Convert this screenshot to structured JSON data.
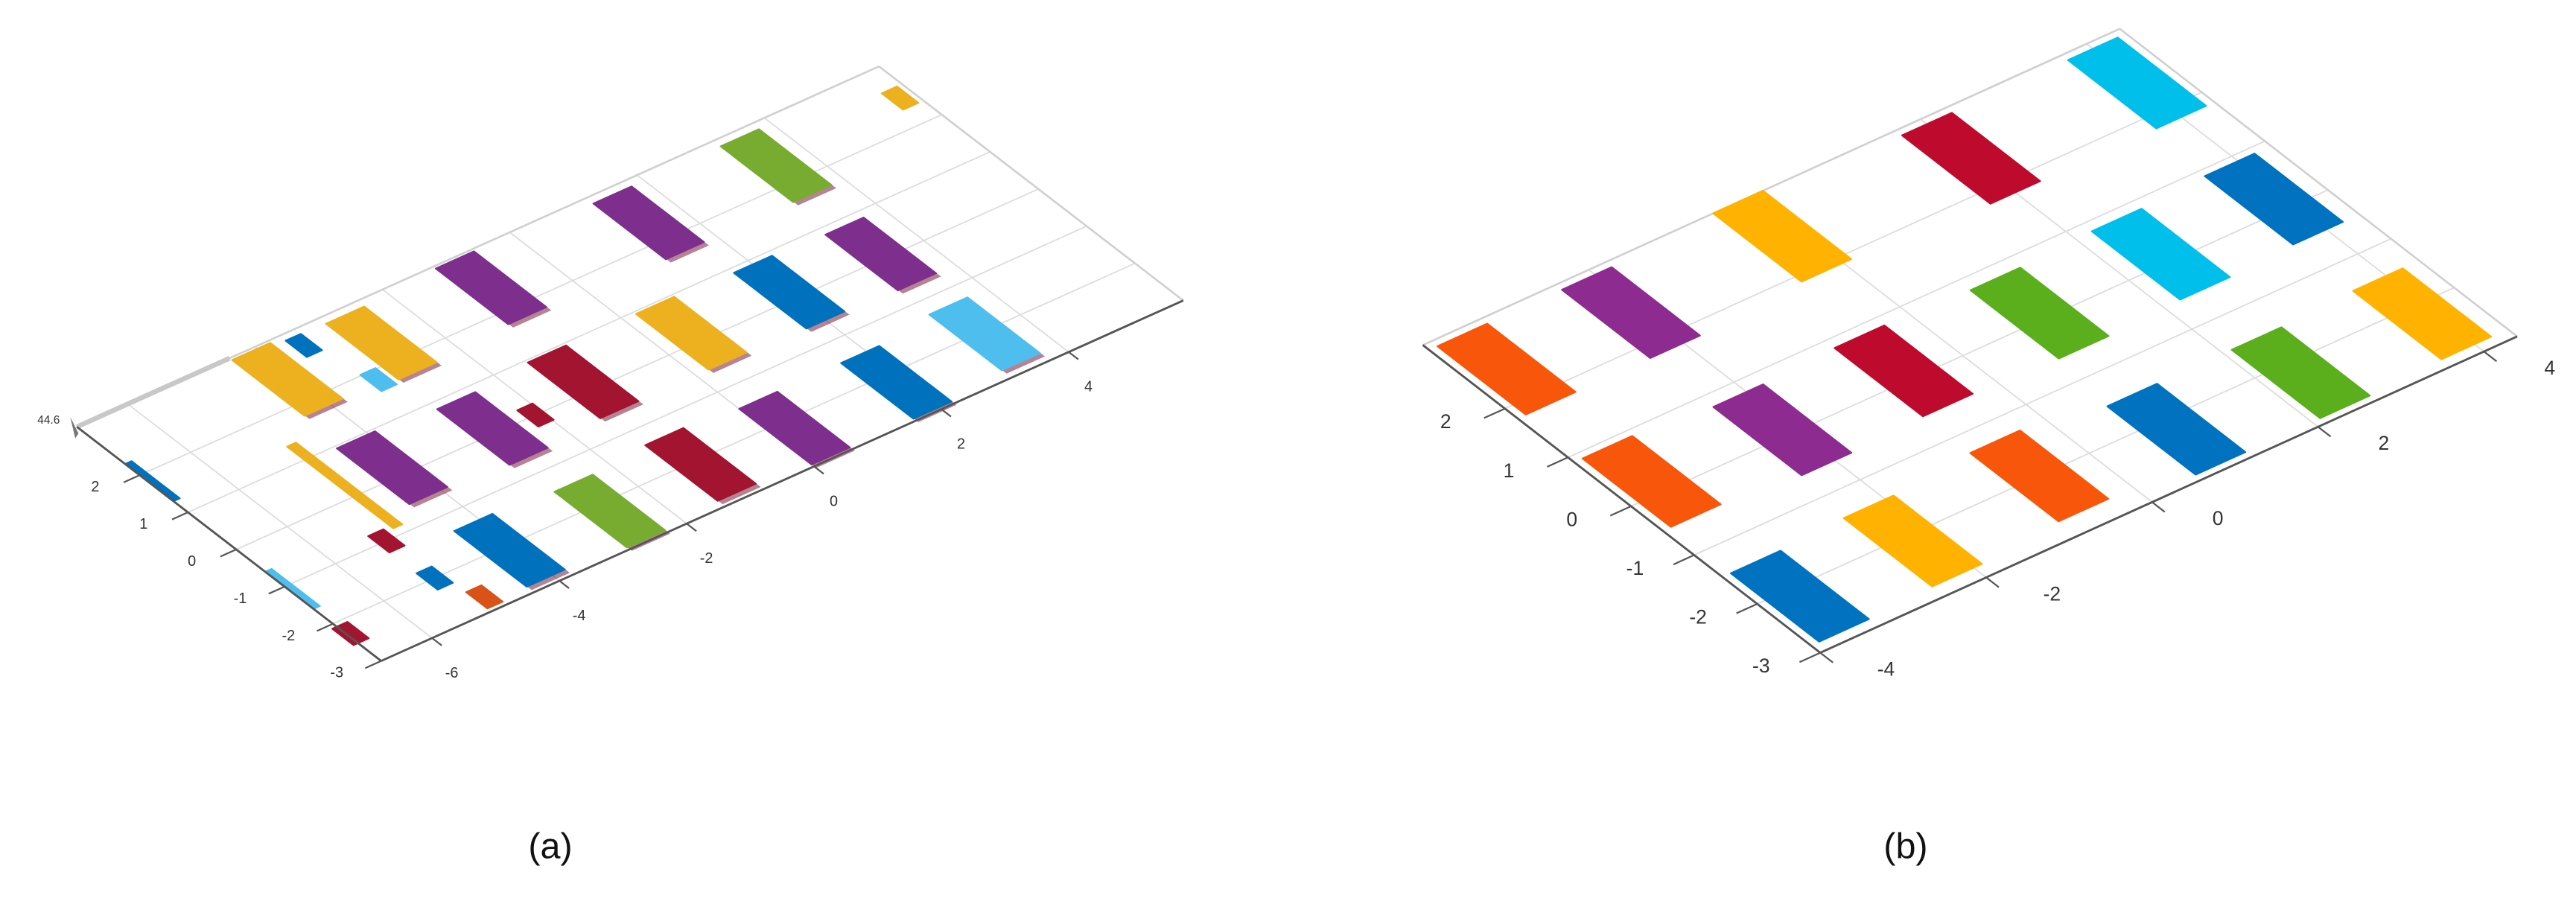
{
  "colors": {
    "a": {
      "blue": "#0072BD",
      "orange": "#D95319",
      "yellow": "#EDB120",
      "purple": "#7E2F8E",
      "green": "#77AC30",
      "cyan": "#4DBEEE",
      "red": "#A2142F"
    },
    "b": {
      "blue": "#0072C0",
      "orange": "#F8560A",
      "yellow": "#FFB300",
      "purple": "#8E2B90",
      "green": "#5BAE1C",
      "cyan": "#00BFEA",
      "red": "#BE0A2C"
    }
  },
  "chart_data": [
    {
      "type": "scatter",
      "subtype": "3d-point-cloud-top-view",
      "panel_label": "(a)",
      "grid": true,
      "xticks": [
        "-6",
        "-4",
        "-2",
        "0",
        "2",
        "4"
      ],
      "xtick_values": [
        -6,
        -4,
        -2,
        0,
        2,
        4
      ],
      "yticks": [
        "-3",
        "-2",
        "-1",
        "0",
        "1",
        "2"
      ],
      "ytick_values": [
        -3,
        -2,
        -1,
        0,
        1,
        2
      ],
      "zlabel_tick": "44.6",
      "xlim": [
        -6.8,
        5.8
      ],
      "ylim": [
        -3,
        3.3
      ],
      "segments": [
        {
          "x": -4.1,
          "y": 2.5,
          "color": "yellow",
          "kind": "patch"
        },
        {
          "x": -2.7,
          "y": 2.4,
          "color": "yellow",
          "kind": "patch"
        },
        {
          "x": -0.9,
          "y": 2.5,
          "color": "purple",
          "kind": "patch"
        },
        {
          "x": 1.5,
          "y": 2.4,
          "color": "purple",
          "kind": "patch"
        },
        {
          "x": 3.5,
          "y": 2.4,
          "color": "green",
          "kind": "patch"
        },
        {
          "x": 5.6,
          "y": 2.6,
          "color": "yellow",
          "kind": "fragment"
        },
        {
          "x": -4.2,
          "y": 0.2,
          "color": "purple",
          "kind": "patch"
        },
        {
          "x": -2.7,
          "y": 0.1,
          "color": "purple",
          "kind": "patch"
        },
        {
          "x": -1.2,
          "y": 0.2,
          "color": "red",
          "kind": "patch"
        },
        {
          "x": 0.5,
          "y": 0.2,
          "color": "yellow",
          "kind": "patch"
        },
        {
          "x": 2.0,
          "y": 0.15,
          "color": "blue",
          "kind": "patch"
        },
        {
          "x": 3.4,
          "y": 0.1,
          "color": "purple",
          "kind": "patch"
        },
        {
          "x": -4.1,
          "y": -2.1,
          "color": "blue",
          "kind": "patch"
        },
        {
          "x": -2.6,
          "y": -2.2,
          "color": "green",
          "kind": "patch"
        },
        {
          "x": -1.1,
          "y": -2.1,
          "color": "red",
          "kind": "patch"
        },
        {
          "x": 0.3,
          "y": -2.2,
          "color": "purple",
          "kind": "patch"
        },
        {
          "x": 1.9,
          "y": -2.2,
          "color": "blue",
          "kind": "patch"
        },
        {
          "x": 3.4,
          "y": -2.05,
          "color": "cyan",
          "kind": "patch"
        },
        {
          "x": -4.9,
          "y": 0.26,
          "color": "yellow",
          "kind": "strip"
        },
        {
          "x": -2.1,
          "y": 0.0,
          "color": "red",
          "kind": "fragment"
        },
        {
          "x": -4.95,
          "y": -2.7,
          "color": "orange",
          "kind": "fragment"
        },
        {
          "x": -5.2,
          "y": -2.0,
          "color": "blue",
          "kind": "fragment"
        },
        {
          "x": -5.2,
          "y": -1.0,
          "color": "red",
          "kind": "fragment"
        },
        {
          "x": -3.2,
          "y": 1.8,
          "color": "cyan",
          "kind": "fragment"
        },
        {
          "x": -3.5,
          "y": 2.95,
          "color": "blue",
          "kind": "fragment"
        },
        {
          "x": -6.75,
          "y": 1.8,
          "color": "blue",
          "kind": "edge"
        },
        {
          "x": -6.75,
          "y": -1.1,
          "color": "cyan",
          "kind": "edge"
        },
        {
          "x": -6.75,
          "y": -2.3,
          "color": "red",
          "kind": "fragment"
        }
      ]
    },
    {
      "type": "scatter",
      "subtype": "3d-point-cloud-top-view",
      "panel_label": "(b)",
      "grid": true,
      "xticks": [
        "-4",
        "-2",
        "0",
        "2",
        "4"
      ],
      "xtick_values": [
        -4,
        -2,
        0,
        2,
        4
      ],
      "yticks": [
        "-3",
        "-2",
        "-1",
        "0",
        "1",
        "2"
      ],
      "ytick_values": [
        -3,
        -2,
        -1,
        0,
        1,
        2
      ],
      "xlim": [
        -4,
        4.4
      ],
      "ylim": [
        -3,
        3.3
      ],
      "segments": [
        {
          "x": -3.6,
          "y": 2.5,
          "color": "orange",
          "kind": "patch"
        },
        {
          "x": -2.1,
          "y": 2.5,
          "color": "purple",
          "kind": "patch"
        },
        {
          "x": -0.2,
          "y": 2.6,
          "color": "yellow",
          "kind": "patch"
        },
        {
          "x": 2.0,
          "y": 2.5,
          "color": "red",
          "kind": "patch"
        },
        {
          "x": 4.0,
          "y": 2.5,
          "color": "cyan",
          "kind": "patch"
        },
        {
          "x": -3.6,
          "y": 0.2,
          "color": "orange",
          "kind": "patch"
        },
        {
          "x": -2.1,
          "y": 0.1,
          "color": "purple",
          "kind": "patch"
        },
        {
          "x": -0.6,
          "y": 0.15,
          "color": "red",
          "kind": "patch"
        },
        {
          "x": 1.0,
          "y": 0.1,
          "color": "green",
          "kind": "patch"
        },
        {
          "x": 2.5,
          "y": 0.15,
          "color": "cyan",
          "kind": "patch"
        },
        {
          "x": 3.9,
          "y": 0.2,
          "color": "blue",
          "kind": "patch"
        },
        {
          "x": -3.6,
          "y": -2.15,
          "color": "blue",
          "kind": "patch"
        },
        {
          "x": -2.2,
          "y": -2.1,
          "color": "yellow",
          "kind": "patch"
        },
        {
          "x": -0.6,
          "y": -2.0,
          "color": "orange",
          "kind": "patch"
        },
        {
          "x": 0.9,
          "y": -2.2,
          "color": "blue",
          "kind": "patch"
        },
        {
          "x": 2.4,
          "y": -2.2,
          "color": "green",
          "kind": "patch"
        },
        {
          "x": 3.9,
          "y": -2.15,
          "color": "yellow",
          "kind": "patch"
        }
      ]
    }
  ]
}
